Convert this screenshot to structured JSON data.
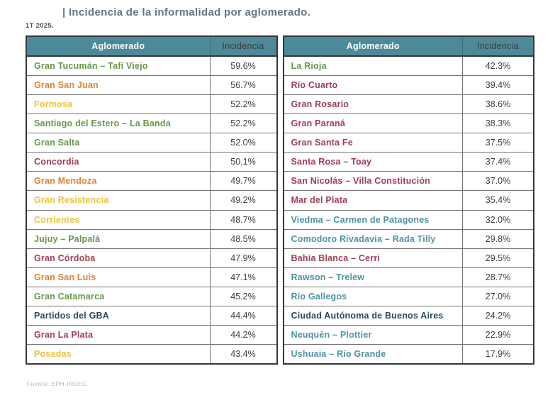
{
  "title": "| Incidencia de la informalidad por aglomerado.",
  "period": "1T 2025.",
  "source": "Fuente: EPH-INDEC.",
  "header": {
    "aglomerado": "Aglomerado",
    "incidencia": "Incidencia"
  },
  "colors": {
    "header_bg": "#4d8a99",
    "green": "#68974a",
    "orange": "#e0832f",
    "yellow": "#f0c13d",
    "maroon": "#a03e53",
    "teal": "#4f92a2",
    "navy": "#2c4a61",
    "value_text": "#3c3c3c"
  },
  "table": {
    "left": [
      {
        "name": "Gran Tucumán – Tafí Viejo",
        "value": "59.6%",
        "color": "#68974a"
      },
      {
        "name": "Gran San Juan",
        "value": "56.7%",
        "color": "#e0832f"
      },
      {
        "name": "Formosa",
        "value": "52.2%",
        "color": "#f0c13d"
      },
      {
        "name": "Santiago del Estero – La Banda",
        "value": "52.2%",
        "color": "#68974a"
      },
      {
        "name": "Gran Salta",
        "value": "52.0%",
        "color": "#68974a"
      },
      {
        "name": "Concordia",
        "value": "50.1%",
        "color": "#a03e53"
      },
      {
        "name": "Gran Mendoza",
        "value": "49.7%",
        "color": "#e0832f"
      },
      {
        "name": "Gran Resistencia",
        "value": "49.2%",
        "color": "#f0c13d"
      },
      {
        "name": "Corrientes",
        "value": "48.7%",
        "color": "#f0c13d"
      },
      {
        "name": "Jujuy – Palpalá",
        "value": "48.5%",
        "color": "#68974a"
      },
      {
        "name": "Gran Córdoba",
        "value": "47.9%",
        "color": "#a03e53"
      },
      {
        "name": "Gran San Luis",
        "value": "47.1%",
        "color": "#e0832f"
      },
      {
        "name": "Gran Catamarca",
        "value": "45.2%",
        "color": "#68974a"
      },
      {
        "name": "Partidos del GBA",
        "value": "44.4%",
        "color": "#2c4a61"
      },
      {
        "name": "Gran La Plata",
        "value": "44.2%",
        "color": "#a03e53"
      },
      {
        "name": "Posadas",
        "value": "43.4%",
        "color": "#f0c13d"
      }
    ],
    "right": [
      {
        "name": "La Rioja",
        "value": "42.3%",
        "color": "#68974a"
      },
      {
        "name": "Río Cuarto",
        "value": "39.4%",
        "color": "#a03e53"
      },
      {
        "name": "Gran Rosario",
        "value": "38.6%",
        "color": "#a03e53"
      },
      {
        "name": "Gran Paraná",
        "value": "38.3%",
        "color": "#a03e53"
      },
      {
        "name": "Gran Santa Fe",
        "value": "37.5%",
        "color": "#a03e53"
      },
      {
        "name": "Santa Rosa – Toay",
        "value": "37.4%",
        "color": "#a03e53"
      },
      {
        "name": "San Nicolás – Villa Constitución",
        "value": "37.0%",
        "color": "#a03e53"
      },
      {
        "name": "Mar del Plata",
        "value": "35.4%",
        "color": "#a03e53"
      },
      {
        "name": "Viedma – Carmen de Patagones",
        "value": "32.0%",
        "color": "#4f92a2"
      },
      {
        "name": "Comodoro Rivadavia – Rada Tilly",
        "value": "29.8%",
        "color": "#4f92a2"
      },
      {
        "name": "Bahía Blanca – Cerri",
        "value": "29.5%",
        "color": "#a03e53"
      },
      {
        "name": "Rawson – Trelew",
        "value": "28.7%",
        "color": "#4f92a2"
      },
      {
        "name": "Río Gallegos",
        "value": "27.0%",
        "color": "#4f92a2"
      },
      {
        "name": "Ciudad Autónoma de Buenos Aires",
        "value": "24.2%",
        "color": "#2c4a61"
      },
      {
        "name": "Neuquén – Plottier",
        "value": "22.9%",
        "color": "#4f92a2"
      },
      {
        "name": "Ushuaia – Río Grande",
        "value": "17.9%",
        "color": "#4f92a2"
      }
    ]
  },
  "chart_data": {
    "type": "table",
    "title": "Incidencia de la informalidad por aglomerado.",
    "subtitle": "1T 2025.",
    "source": "Fuente: EPH-INDEC.",
    "columns": [
      "Aglomerado",
      "Incidencia"
    ],
    "categories": [
      "Gran Tucumán – Tafí Viejo",
      "Gran San Juan",
      "Formosa",
      "Santiago del Estero – La Banda",
      "Gran Salta",
      "Concordia",
      "Gran Mendoza",
      "Gran Resistencia",
      "Corrientes",
      "Jujuy – Palpalá",
      "Gran Córdoba",
      "Gran San Luis",
      "Gran Catamarca",
      "Partidos del GBA",
      "Gran La Plata",
      "Posadas",
      "La Rioja",
      "Río Cuarto",
      "Gran Rosario",
      "Gran Paraná",
      "Gran Santa Fe",
      "Santa Rosa – Toay",
      "San Nicolás – Villa Constitución",
      "Mar del Plata",
      "Viedma – Carmen de Patagones",
      "Comodoro Rivadavia – Rada Tilly",
      "Bahía Blanca – Cerri",
      "Rawson – Trelew",
      "Río Gallegos",
      "Ciudad Autónoma de Buenos Aires",
      "Neuquén – Plottier",
      "Ushuaia – Río Grande"
    ],
    "values": [
      59.6,
      56.7,
      52.2,
      52.2,
      52.0,
      50.1,
      49.7,
      49.2,
      48.7,
      48.5,
      47.9,
      47.1,
      45.2,
      44.4,
      44.2,
      43.4,
      42.3,
      39.4,
      38.6,
      38.3,
      37.5,
      37.4,
      37.0,
      35.4,
      32.0,
      29.8,
      29.5,
      28.7,
      27.0,
      24.2,
      22.9,
      17.9
    ],
    "value_unit": "%"
  }
}
